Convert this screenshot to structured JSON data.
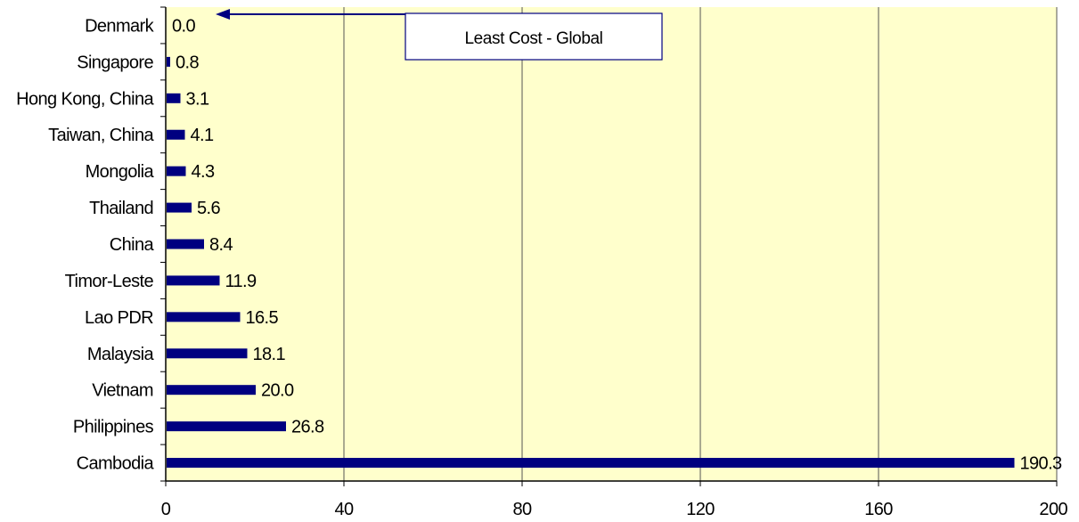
{
  "chart_data": {
    "type": "bar",
    "orientation": "horizontal",
    "categories": [
      "Denmark",
      "Singapore",
      "Hong Kong, China",
      "Taiwan, China",
      "Mongolia",
      "Thailand",
      "China",
      "Timor-Leste",
      "Lao PDR",
      "Malaysia",
      "Vietnam",
      "Philippines",
      "Cambodia"
    ],
    "values": [
      0.0,
      0.8,
      3.1,
      4.1,
      4.3,
      5.6,
      8.4,
      11.9,
      16.5,
      18.1,
      20.0,
      26.8,
      190.3
    ],
    "value_labels": [
      "0.0",
      "0.8",
      "3.1",
      "4.1",
      "4.3",
      "5.6",
      "8.4",
      "11.9",
      "16.5",
      "18.1",
      "20.0",
      "26.8",
      "190.3"
    ],
    "xlim": [
      0,
      200
    ],
    "xticks": [
      0,
      40,
      80,
      120,
      160,
      200
    ],
    "xtick_labels": [
      "0",
      "40",
      "80",
      "120",
      "160",
      "200"
    ],
    "grid": "vertical",
    "title": "",
    "xlabel": "",
    "ylabel": "",
    "annotation": {
      "text": "Least Cost - Global",
      "points_to": "Denmark"
    },
    "colors": {
      "bar": "#000080",
      "plot_background": "#ffffcc",
      "grid": "#000000",
      "annotation_border": "#000080"
    }
  }
}
